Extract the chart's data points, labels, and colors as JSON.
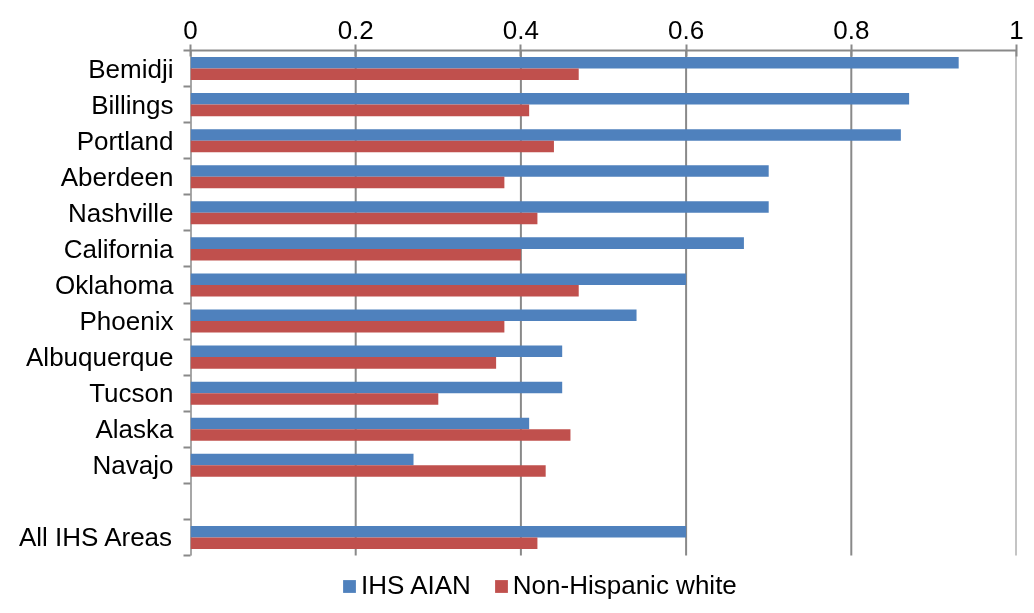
{
  "chart_data": {
    "type": "bar",
    "orientation": "horizontal",
    "categories": [
      "Bemidji",
      "Billings",
      "Portland",
      "Aberdeen",
      "Nashville",
      "California",
      "Oklahoma",
      "Phoenix",
      "Albuquerque",
      "Tucson",
      "Alaska",
      "Navajo",
      null,
      "All IHS Areas"
    ],
    "series": [
      {
        "name": "IHS AIAN",
        "color": "#4f81bd",
        "values": [
          0.93,
          0.87,
          0.86,
          0.7,
          0.7,
          0.67,
          0.6,
          0.54,
          0.45,
          0.45,
          0.41,
          0.27,
          null,
          0.6
        ]
      },
      {
        "name": "Non-Hispanic white",
        "color": "#c0504d",
        "values": [
          0.47,
          0.41,
          0.44,
          0.38,
          0.42,
          0.4,
          0.47,
          0.38,
          0.37,
          0.3,
          0.46,
          0.43,
          null,
          0.42
        ]
      }
    ],
    "xlim": [
      0,
      1
    ],
    "xticks": [
      0,
      0.2,
      0.4,
      0.6,
      0.8,
      1
    ],
    "grid": "x",
    "legend": "bottom"
  }
}
